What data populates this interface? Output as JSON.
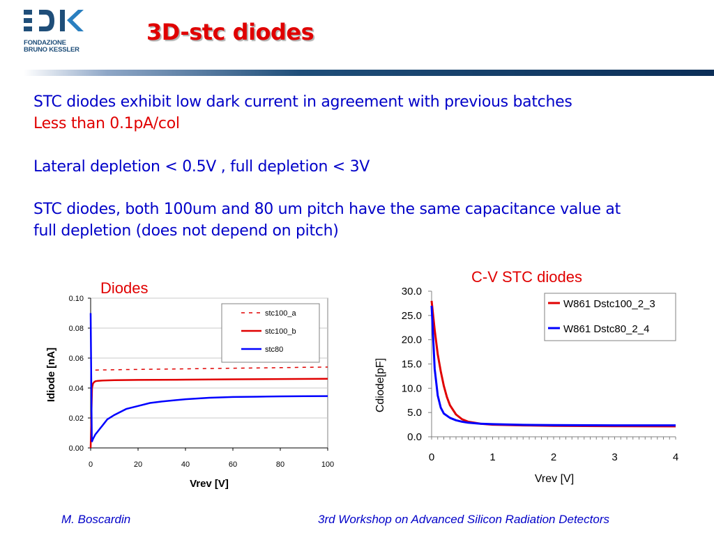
{
  "slide": {
    "title": "3D-stc diodes",
    "logo_line1": "FONDAZIONE",
    "logo_line2": "BRUNO KESSLER",
    "lines": [
      "STC diodes exhibit low dark current in agreement with previous batches",
      "Less than 0.1pA/col",
      "Lateral depletion < 0.5V ,  full depletion < 3V",
      "STC diodes, both 100um and 80 um pitch have the same capacitance value at",
      "full depletion (does not depend on pitch)"
    ],
    "footer_left": "M. Boscardin",
    "footer_right": "3rd Workshop on Advanced Silicon Radiation Detectors",
    "colors": {
      "title": "#e00000",
      "text": "#0000c8",
      "rule": "#1f4e79"
    }
  },
  "chart_data": [
    {
      "type": "line",
      "title": "Diodes",
      "xlabel": "Vrev [V]",
      "ylabel": "Idiode [nA]",
      "xlim": [
        0,
        100
      ],
      "ylim": [
        0,
        0.1
      ],
      "xticks": [
        "0",
        "20",
        "40",
        "60",
        "80",
        "100"
      ],
      "yticks": [
        "0.00",
        "0.02",
        "0.04",
        "0.06",
        "0.08",
        "0.10"
      ],
      "grid": "horizontal",
      "legend": "top-right",
      "series": [
        {
          "name": "stc100_a",
          "color": "#e00000",
          "dashed": true,
          "x": [
            2,
            10,
            20,
            30,
            40,
            50,
            60,
            70,
            80,
            90,
            100
          ],
          "y": [
            0.052,
            0.0522,
            0.0524,
            0.0526,
            0.0528,
            0.053,
            0.0532,
            0.0534,
            0.0536,
            0.0538,
            0.054
          ]
        },
        {
          "name": "stc100_b",
          "color": "#e00000",
          "dashed": false,
          "x": [
            0,
            0.3,
            0.6,
            1,
            1.5,
            2,
            3,
            5,
            10,
            20,
            40,
            60,
            80,
            100
          ],
          "y": [
            0,
            0.02,
            0.04,
            0.043,
            0.044,
            0.0445,
            0.0448,
            0.045,
            0.0452,
            0.0454,
            0.0456,
            0.0458,
            0.046,
            0.0462
          ]
        },
        {
          "name": "stc80",
          "color": "#0000ff",
          "dashed": false,
          "x": [
            0,
            0.5,
            1,
            2,
            3,
            4,
            5,
            7,
            10,
            15,
            20,
            25,
            30,
            40,
            50,
            60,
            70,
            80,
            90,
            100
          ],
          "y": [
            0.09,
            0.004,
            0.006,
            0.009,
            0.011,
            0.013,
            0.015,
            0.019,
            0.022,
            0.026,
            0.028,
            0.03,
            0.031,
            0.0325,
            0.0335,
            0.034,
            0.0342,
            0.0344,
            0.0345,
            0.0346
          ]
        }
      ]
    },
    {
      "type": "line",
      "title": "C-V STC diodes",
      "xlabel": "Vrev [V]",
      "ylabel": "Cdiode[pF]",
      "xlim": [
        0,
        4
      ],
      "ylim": [
        0,
        30
      ],
      "xticks": [
        "0",
        "1",
        "2",
        "3",
        "4"
      ],
      "yticks": [
        "0.0",
        "5.0",
        "10.0",
        "15.0",
        "20.0",
        "25.0",
        "30.0"
      ],
      "grid": "none",
      "legend": "top-right",
      "series": [
        {
          "name": "W861 Dstc100_2_3",
          "color": "#e00000",
          "x": [
            0,
            0.05,
            0.1,
            0.15,
            0.2,
            0.25,
            0.3,
            0.4,
            0.5,
            0.6,
            0.8,
            1.0,
            1.5,
            2.0,
            3.0,
            4.0
          ],
          "y": [
            28,
            22,
            17,
            13.5,
            10.5,
            8.2,
            6.5,
            4.6,
            3.6,
            3.1,
            2.7,
            2.5,
            2.35,
            2.25,
            2.2,
            2.15
          ]
        },
        {
          "name": "W861 Dstc80_2_4",
          "color": "#0000ff",
          "x": [
            0,
            0.05,
            0.1,
            0.15,
            0.2,
            0.3,
            0.4,
            0.5,
            0.6,
            0.8,
            1.0,
            1.5,
            2.0,
            3.0,
            4.0
          ],
          "y": [
            27,
            14,
            8.5,
            6,
            4.8,
            3.9,
            3.4,
            3.1,
            2.9,
            2.7,
            2.6,
            2.45,
            2.4,
            2.35,
            2.35
          ]
        }
      ]
    }
  ]
}
